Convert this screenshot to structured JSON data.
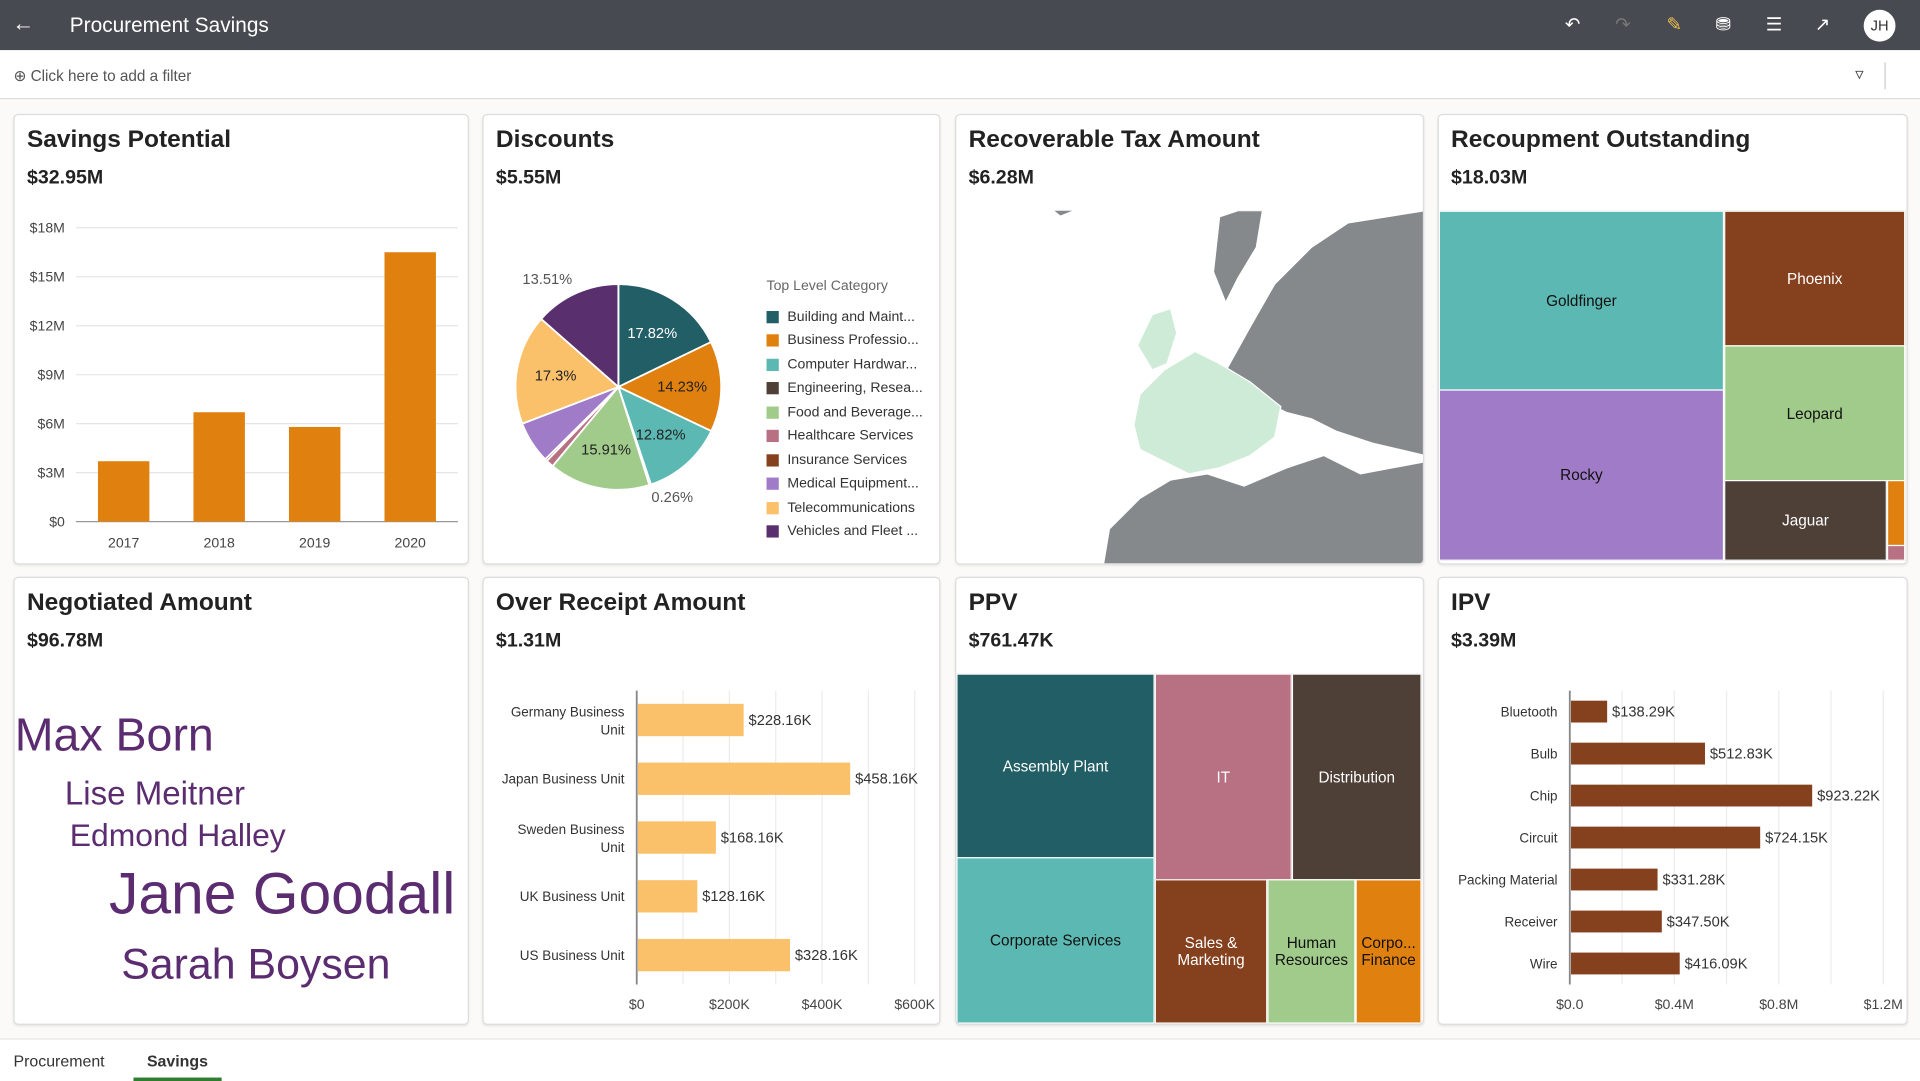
{
  "header": {
    "title": "Procurement Savings",
    "back_icon": "arrow-left-icon",
    "avatar": "JH",
    "icons": [
      "undo-icon",
      "redo-icon",
      "edit-icon",
      "data-refresh-icon",
      "comment-icon",
      "export-icon"
    ]
  },
  "filterbar": {
    "add_filter": "Click here to add a filter"
  },
  "cards": {
    "savings": {
      "title": "Savings Potential",
      "value": "$32.95M"
    },
    "discounts": {
      "title": "Discounts",
      "value": "$5.55M"
    },
    "tax": {
      "title": "Recoverable Tax Amount",
      "value": "$6.28M"
    },
    "recoup": {
      "title": "Recoupment Outstanding",
      "value": "$18.03M"
    },
    "negotiated": {
      "title": "Negotiated Amount",
      "value": "$96.78M"
    },
    "overreceipt": {
      "title": "Over Receipt Amount",
      "value": "$1.31M"
    },
    "ppv": {
      "title": "PPV",
      "value": "$761.47K"
    },
    "ipv": {
      "title": "IPV",
      "value": "$3.39M"
    }
  },
  "chart_data": [
    {
      "type": "bar",
      "id": "savings",
      "categories": [
        "2017",
        "2018",
        "2019",
        "2020"
      ],
      "values": [
        3.7,
        6.7,
        5.8,
        16.5
      ],
      "ylim": [
        0,
        18
      ],
      "yticks": [
        "$0",
        "$3M",
        "$6M",
        "$9M",
        "$12M",
        "$15M",
        "$18M"
      ],
      "grid": true,
      "color": "#e0800f"
    },
    {
      "type": "pie",
      "id": "discounts",
      "legend_title": "Top Level Category",
      "legend": "right",
      "slices": [
        {
          "name": "Building and Maint...",
          "value": 17.82,
          "label": "17.82%",
          "color": "#225e66"
        },
        {
          "name": "Business Professio...",
          "value": 14.23,
          "label": "14.23%",
          "color": "#e0800f"
        },
        {
          "name": "Computer Hardwar...",
          "value": 12.82,
          "label": "12.82%",
          "color": "#5cb8b2"
        },
        {
          "name": "Engineering, Resea...",
          "value": 0.26,
          "label": "0.26%",
          "color": "#4e3f37"
        },
        {
          "name": "Food and Beverage...",
          "value": 15.91,
          "label": "15.91%",
          "color": "#a0cb8a"
        },
        {
          "name": "Healthcare Services",
          "value": 1.2,
          "label": "",
          "color": "#b87083"
        },
        {
          "name": "Insurance Services",
          "value": 0.35,
          "label": "",
          "color": "#85401e"
        },
        {
          "name": "Medical Equipment...",
          "value": 6.6,
          "label": "",
          "color": "#a07cc8"
        },
        {
          "name": "Telecommunications",
          "value": 17.3,
          "label": "17.3%",
          "color": "#fbc06a"
        },
        {
          "name": "Vehicles and Fleet ...",
          "value": 13.51,
          "label": "13.51%",
          "color": "#5a2f6e"
        }
      ]
    },
    {
      "type": "treemap",
      "id": "recoup",
      "items": [
        {
          "name": "Goldfinger",
          "color": "#5cb8b2"
        },
        {
          "name": "Rocky",
          "color": "#a07cc8"
        },
        {
          "name": "Phoenix",
          "color": "#85401e"
        },
        {
          "name": "Leopard",
          "color": "#a0cb8a"
        },
        {
          "name": "Jaguar",
          "color": "#4e3f37"
        }
      ]
    },
    {
      "type": "bar",
      "id": "overreceipt",
      "orientation": "horizontal",
      "categories": [
        "Germany Business Unit",
        "Japan Business Unit",
        "Sweden Business Unit",
        "UK Business Unit",
        "US Business Unit"
      ],
      "values": [
        228.16,
        458.16,
        168.16,
        128.16,
        328.16
      ],
      "labels": [
        "$228.16K",
        "$458.16K",
        "$168.16K",
        "$128.16K",
        "$328.16K"
      ],
      "xlim": [
        0,
        600
      ],
      "xticks": [
        "$0",
        "$200K",
        "$400K",
        "$600K"
      ],
      "color": "#fbc06a"
    },
    {
      "type": "treemap",
      "id": "ppv",
      "items": [
        {
          "name": "Assembly Plant",
          "color": "#225e66"
        },
        {
          "name": "Corporate Services",
          "color": "#5cb8b2"
        },
        {
          "name": "IT",
          "color": "#b87083"
        },
        {
          "name": "Distribution",
          "color": "#4e3f37"
        },
        {
          "name": "Sales & Marketing",
          "color": "#85401e"
        },
        {
          "name": "Human Resources",
          "color": "#a0cb8a"
        },
        {
          "name": "Corpo... Finance",
          "color": "#e0800f"
        }
      ]
    },
    {
      "type": "bar",
      "id": "ipv",
      "orientation": "horizontal",
      "categories": [
        "Bluetooth",
        "Bulb",
        "Chip",
        "Circuit",
        "Packing Material",
        "Receiver",
        "Wire"
      ],
      "values": [
        138.29,
        512.83,
        923.22,
        724.15,
        331.28,
        347.5,
        416.09
      ],
      "labels": [
        "$138.29K",
        "$512.83K",
        "$923.22K",
        "$724.15K",
        "$331.28K",
        "$347.50K",
        "$416.09K"
      ],
      "xlim": [
        0,
        1200
      ],
      "xticks": [
        "$0.0",
        "$0.4M",
        "$0.8M",
        "$1.2M"
      ],
      "color": "#85401e"
    }
  ],
  "wordcloud": [
    "Max Born",
    "Lise Meitner",
    "Edmond Halley",
    "Jane Goodall",
    "Sarah Boysen"
  ],
  "tabs": [
    "Procurement",
    "Savings"
  ]
}
